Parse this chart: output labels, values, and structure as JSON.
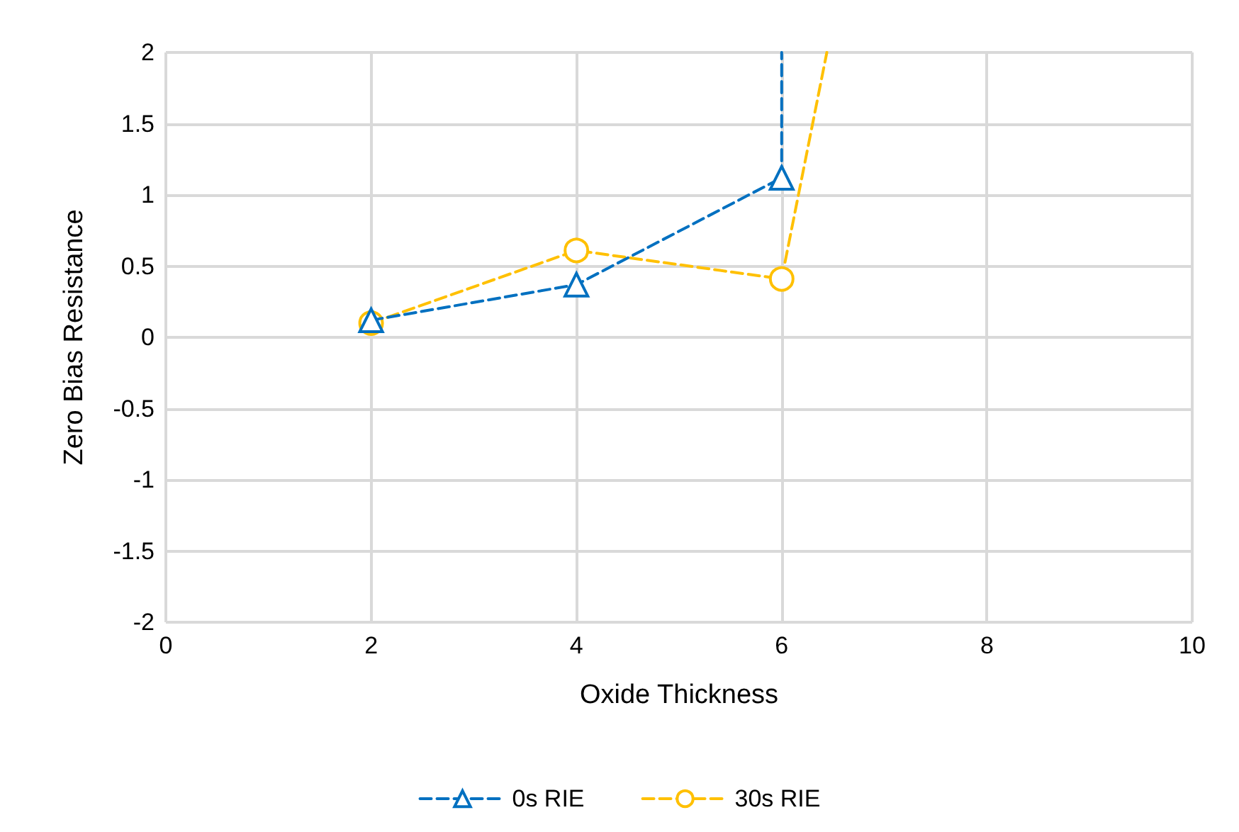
{
  "chart_data": {
    "type": "line",
    "xlabel": "Oxide Thickness",
    "ylabel": "Zero Bias Resistance",
    "xlim": [
      0,
      10
    ],
    "xticks": [
      0,
      2,
      4,
      6,
      8,
      10
    ],
    "ylim": [
      -2,
      2
    ],
    "yticks": [
      -2,
      -1.5,
      -1,
      -0.5,
      0,
      0.5,
      1,
      1.5,
      2
    ],
    "grid": true,
    "legend": "bottom",
    "line_style": "dashed",
    "series": [
      {
        "name": "0s RIE",
        "color": "#0070c0",
        "marker": "triangle",
        "x": [
          2,
          4,
          6
        ],
        "values": [
          0.12,
          0.37,
          1.12
        ]
      },
      {
        "name": "30s RIE",
        "color": "#ffc000",
        "marker": "circle",
        "x": [
          2,
          4,
          6
        ],
        "values": [
          0.1,
          0.61,
          0.41
        ]
      },
      {
        "color": "#0070c0",
        "marker": "none",
        "x": [
          6,
          6
        ],
        "values": [
          1.12,
          2
        ]
      },
      {
        "color": "#ffc000",
        "marker": "none",
        "x": [
          6,
          6.44
        ],
        "values": [
          0.41,
          2
        ]
      }
    ]
  }
}
